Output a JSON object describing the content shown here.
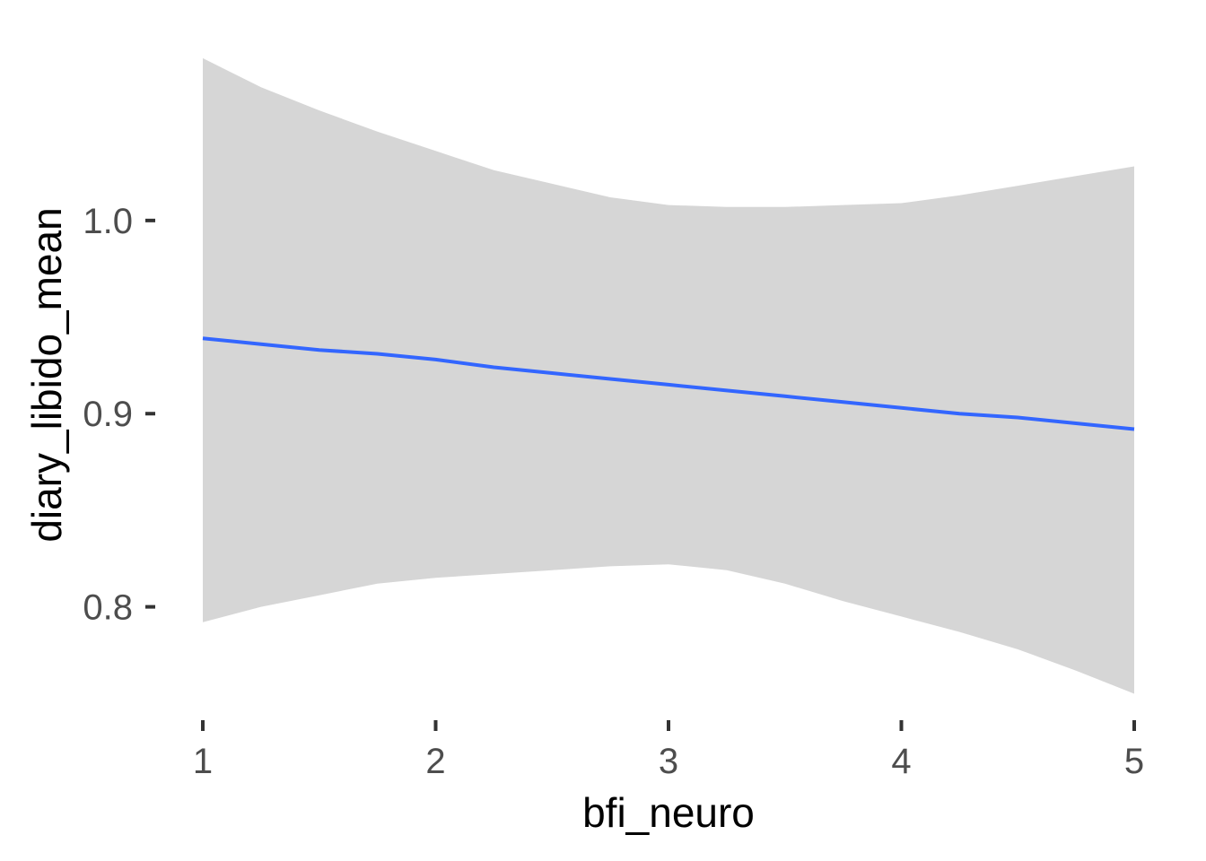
{
  "chart_data": {
    "type": "line",
    "title": "",
    "xlabel": "bfi_neuro",
    "ylabel": "diary_libido_mean",
    "xlim": [
      1,
      5
    ],
    "ylim": [
      0.752,
      1.09
    ],
    "x_ticks": [
      1,
      2,
      3,
      4,
      5
    ],
    "x_tick_labels": [
      "1",
      "2",
      "3",
      "4",
      "5"
    ],
    "y_ticks": [
      0.8,
      0.9,
      1.0
    ],
    "y_tick_labels": [
      "0.8",
      "0.9",
      "1.0"
    ],
    "grid": false,
    "legend": "none",
    "series": [
      {
        "x": [
          1,
          1.25,
          1.5,
          1.75,
          2,
          2.25,
          2.5,
          2.75,
          3,
          3.25,
          3.5,
          3.75,
          4,
          4.25,
          4.5,
          4.75,
          5
        ],
        "y": [
          0.939,
          0.936,
          0.933,
          0.931,
          0.928,
          0.924,
          0.921,
          0.918,
          0.915,
          0.912,
          0.909,
          0.906,
          0.903,
          0.9,
          0.898,
          0.895,
          0.892
        ],
        "ymin": [
          0.792,
          0.8,
          0.806,
          0.812,
          0.815,
          0.817,
          0.819,
          0.821,
          0.822,
          0.819,
          0.812,
          0.803,
          0.795,
          0.787,
          0.778,
          0.767,
          0.755
        ],
        "ymax": [
          1.084,
          1.069,
          1.057,
          1.046,
          1.036,
          1.026,
          1.019,
          1.012,
          1.008,
          1.007,
          1.007,
          1.008,
          1.009,
          1.013,
          1.018,
          1.023,
          1.028
        ]
      }
    ],
    "colors": {
      "line": "#3366ff",
      "band": "#d6d6d6",
      "tick": "#333333",
      "tick_label": "#4d4d4d"
    }
  }
}
